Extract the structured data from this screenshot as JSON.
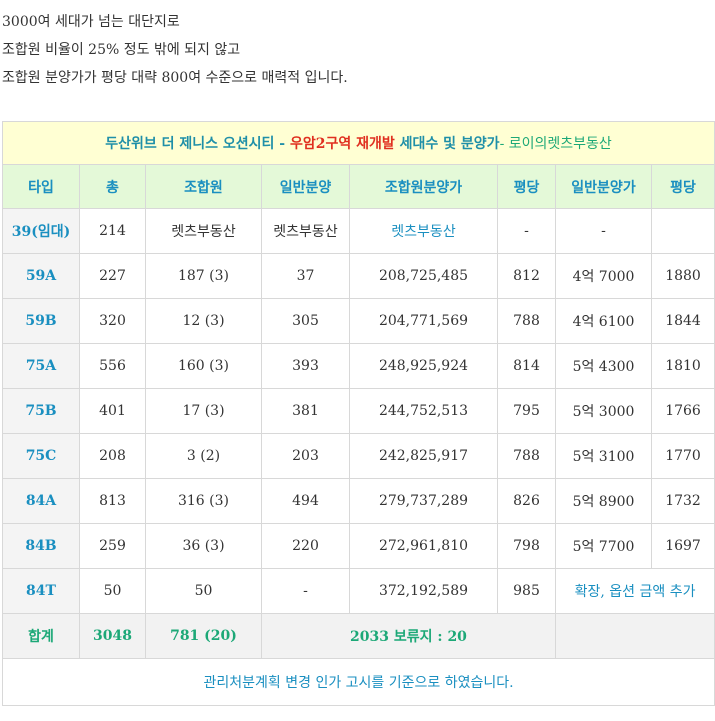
{
  "intro": [
    "3000여 세대가 넘는 대단지로",
    "조합원 비율이 25% 정도 밖에 되지 않고",
    "조합원 분양가가 평당 대략 800여 수준으로 매력적 입니다."
  ],
  "table": {
    "title": {
      "part1": "두산위브 더 제니스 오션시티 - ",
      "part2": "우암2구역 재개발",
      "part3": " 세대수 및 분양가",
      "part4": "- 로이의렛츠부동산"
    },
    "headers": [
      "타입",
      "총",
      "조합원",
      "일반분양",
      "조합원분양가",
      "평당",
      "일반분양가",
      "평당"
    ],
    "rows": [
      [
        "39(임대)",
        "214",
        "렛츠부동산",
        "렛츠부동산",
        "렛츠부동산",
        "-",
        "-",
        ""
      ],
      [
        "59A",
        "227",
        "187 (3)",
        "37",
        "208,725,485",
        "812",
        "4억 7000",
        "1880"
      ],
      [
        "59B",
        "320",
        "12 (3)",
        "305",
        "204,771,569",
        "788",
        "4억 6100",
        "1844"
      ],
      [
        "75A",
        "556",
        "160 (3)",
        "393",
        "248,925,924",
        "814",
        "5억 4300",
        "1810"
      ],
      [
        "75B",
        "401",
        "17 (3)",
        "381",
        "244,752,513",
        "795",
        "5억 3000",
        "1766"
      ],
      [
        "75C",
        "208",
        "3 (2)",
        "203",
        "242,825,917",
        "788",
        "5억 3100",
        "1770"
      ],
      [
        "84A",
        "813",
        "316 (3)",
        "494",
        "279,737,289",
        "826",
        "5억 8900",
        "1732"
      ],
      [
        "84B",
        "259",
        "36 (3)",
        "220",
        "272,961,810",
        "798",
        "5억 7700",
        "1697"
      ]
    ],
    "last_row": [
      "84T",
      "50",
      "50",
      "-",
      "372,192,589",
      "985",
      "확장, 옵션 금액 추가"
    ],
    "sum_row": {
      "label": "합계",
      "total": "3048",
      "members": "781 (20)",
      "note": "2033 보류지 : 20"
    },
    "footnote": "관리처분계획 변경 인가 고시를 기준으로 하였습니다.",
    "colors": {
      "title_bg": "#ffffd3",
      "header_bg": "#e4f9d8",
      "accent_blue": "#1a8fc0",
      "accent_red": "#e03020",
      "accent_green": "#1ca877"
    }
  }
}
